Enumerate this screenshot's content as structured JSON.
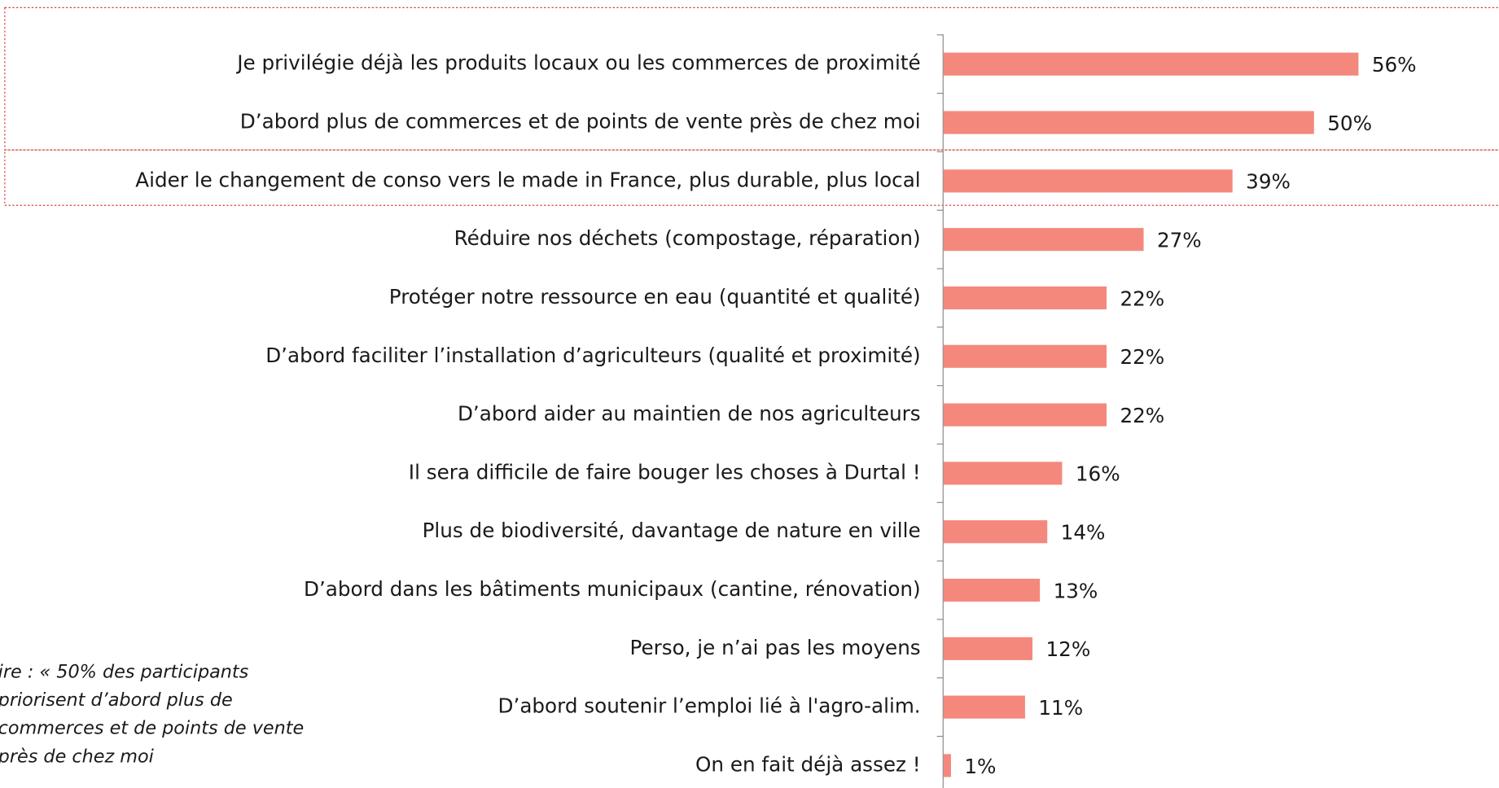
{
  "chart_data": {
    "type": "bar",
    "orientation": "horizontal",
    "categories": [
      "Je privilégie déjà les produits locaux ou les commerces de proximité",
      "D’abord plus de commerces et de points de vente près de chez moi",
      "Aider le changement de conso vers le made in France, plus durable, plus local",
      "Réduire nos déchets (compostage, réparation)",
      "Protéger notre ressource en eau (quantité  et qualité)",
      "D’abord faciliter l’installation d’agriculteurs (qualité et proximité)",
      "D’abord aider au maintien de nos agriculteurs",
      "Il sera difficile de faire bouger les choses à Durtal !",
      "Plus de biodiversité, davantage de nature en ville",
      "D’abord dans les bâtiments municipaux (cantine, rénovation)",
      "Perso, je n’ai pas les moyens",
      "D’abord soutenir l’emploi lié à l'agro-alim.",
      "On en fait déjà assez !"
    ],
    "values": [
      56,
      50,
      39,
      27,
      22,
      22,
      22,
      16,
      14,
      13,
      12,
      11,
      1
    ],
    "value_labels": [
      "56%",
      "50%",
      "39%",
      "27%",
      "22%",
      "22%",
      "22%",
      "16%",
      "14%",
      "13%",
      "12%",
      "11%",
      "1%"
    ],
    "color": "#f4887d",
    "annotation": [
      "ire : « 50% des participants",
      "priorisent d’abord plus de",
      "commerces et de points de vente",
      "près de chez moi"
    ]
  }
}
